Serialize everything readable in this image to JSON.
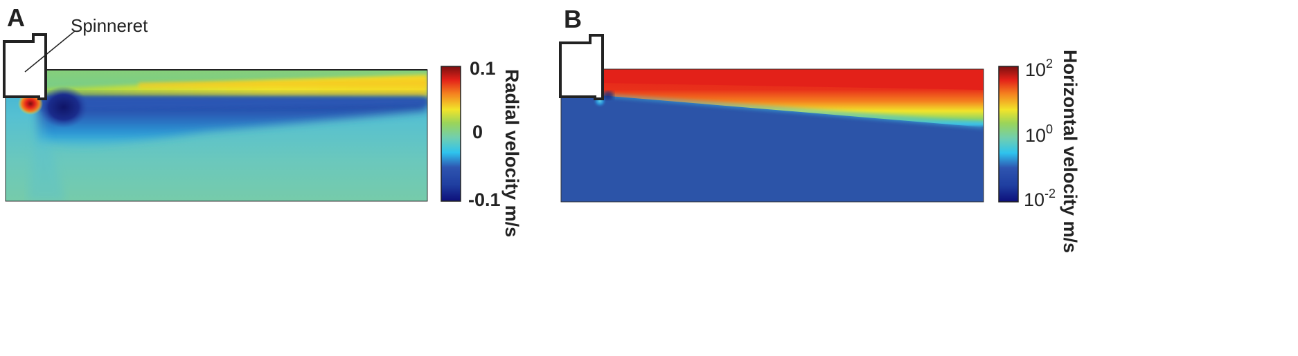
{
  "panels": [
    {
      "letter": "A",
      "annotation": "Spinneret",
      "colorbar": {
        "title": "Radial velocity m/s",
        "ticks": [
          "0.1",
          "0",
          "-0.1"
        ],
        "scale": "linear",
        "range": [
          -0.1,
          0.1
        ]
      }
    },
    {
      "letter": "B",
      "colorbar": {
        "title": "Horizontal velocity m/s",
        "ticks": [
          {
            "base": "10",
            "exp": "2"
          },
          {
            "base": "10",
            "exp": "0"
          },
          {
            "base": "10",
            "exp": "-2"
          }
        ],
        "scale": "log",
        "range": [
          0.01,
          100
        ]
      }
    }
  ],
  "colormap": "jet",
  "colors": {
    "jet_stops": [
      "#0d0f7a",
      "#2e55b0",
      "#2ec3ee",
      "#70cfb0",
      "#7ed05c",
      "#f2e42a",
      "#f47f1f",
      "#e32119",
      "#7a1010"
    ],
    "background_A": "#6cc8b6",
    "background_B": "#2c54a8",
    "scale_bar": "#ffffff",
    "outline": "#222222"
  }
}
